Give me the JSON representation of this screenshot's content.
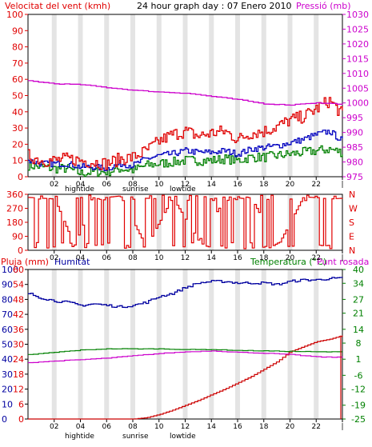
{
  "header": {
    "wind_title": "Velocitat del vent (kmh)",
    "date_title": "24 hour graph day : 07 Enero 2010",
    "pressure_title": "Pressió (mb)"
  },
  "footer_labels": {
    "hightide": "hightide",
    "sunrise": "sunrise",
    "lowtide": "lowtide"
  },
  "panel3_labels": {
    "rain": "Pluja (mm)",
    "humidity": "Humitat",
    "temperature": "Temperatura (°C)",
    "dewpoint": "Punt rosada"
  },
  "colors": {
    "wind_gust": "#e00000",
    "wind_avg": "#0000c0",
    "wind_low": "#008000",
    "pressure": "#cc00cc",
    "direction": "#e00000",
    "humidity": "#0000a0",
    "rain": "#cc0000",
    "temperature": "#008000",
    "dewpoint": "#cc00cc",
    "grid_band": "#e4e4e4"
  },
  "chart_data": [
    {
      "type": "line",
      "x_ticks": [
        "02",
        "04",
        "06",
        "08",
        "10",
        "12",
        "14",
        "16",
        "18",
        "20",
        "22",
        "|"
      ],
      "x_range": [
        0,
        24
      ],
      "left_axis": {
        "ticks": [
          0,
          10,
          20,
          30,
          40,
          50,
          60,
          70,
          80,
          90,
          100
        ],
        "range": [
          0,
          100
        ]
      },
      "right_axis": {
        "ticks": [
          975,
          980,
          985,
          990,
          995,
          1000,
          1005,
          1010,
          1015,
          1020,
          1025,
          1030
        ],
        "range": [
          975,
          1030
        ]
      },
      "series": [
        {
          "x": [
            0,
            1,
            2,
            3,
            4,
            5,
            6,
            7,
            8,
            9,
            10,
            11,
            12,
            13,
            14,
            15,
            16,
            17,
            18,
            19,
            20,
            21,
            22,
            23,
            24
          ],
          "values": [
            13,
            10,
            10,
            11,
            10,
            9,
            8,
            11,
            12,
            16,
            22,
            26,
            28,
            25,
            27,
            28,
            23,
            27,
            28,
            31,
            35,
            37,
            42,
            47,
            38
          ]
        },
        {
          "x": [
            0,
            1,
            2,
            3,
            4,
            5,
            6,
            7,
            8,
            9,
            10,
            11,
            12,
            13,
            14,
            15,
            16,
            17,
            18,
            19,
            20,
            21,
            22,
            23,
            24
          ],
          "values": [
            10,
            8,
            8,
            8,
            6,
            6,
            5,
            8,
            7,
            11,
            13,
            14,
            16,
            15,
            15,
            16,
            14,
            17,
            18,
            19,
            21,
            23,
            26,
            28,
            22
          ]
        },
        {
          "x": [
            0,
            1,
            2,
            3,
            4,
            5,
            6,
            7,
            8,
            9,
            10,
            11,
            12,
            13,
            14,
            15,
            16,
            17,
            18,
            19,
            20,
            21,
            22,
            23,
            24
          ],
          "values": [
            7,
            6,
            5,
            5,
            2,
            3,
            3,
            5,
            4,
            7,
            8,
            9,
            10,
            10,
            10,
            11,
            10,
            12,
            12,
            13,
            14,
            15,
            16,
            17,
            15
          ]
        },
        {
          "x": [
            0,
            2,
            4,
            6,
            8,
            10,
            12,
            14,
            16,
            18,
            19,
            20,
            21,
            22,
            23,
            24
          ],
          "values": [
            1007.5,
            1006.5,
            1006.2,
            1005.2,
            1004.3,
            1003.7,
            1003.3,
            1002.2,
            1001.1,
            999.7,
            999.5,
            999.3,
            999.8,
            1000,
            999.8,
            999.6
          ]
        }
      ]
    },
    {
      "type": "line",
      "x_ticks": [
        "02",
        "04",
        "06",
        "08",
        "10",
        "12",
        "14",
        "16",
        "18",
        "20",
        "22",
        "|"
      ],
      "left_axis": {
        "ticks": [
          0,
          90,
          180,
          270,
          360
        ],
        "range": [
          0,
          360
        ]
      },
      "right_labels": [
        "N",
        "W",
        "S",
        "E",
        "N"
      ],
      "series": [
        {
          "x": [
            0,
            2,
            3.5,
            5,
            7,
            9,
            11,
            13,
            15,
            17,
            19,
            21,
            23,
            24
          ],
          "values": [
            340,
            330,
            30,
            330,
            350,
            20,
            340,
            60,
            330,
            340,
            20,
            345,
            330,
            335
          ]
        }
      ]
    },
    {
      "type": "line",
      "x_ticks": [
        "02",
        "04",
        "06",
        "08",
        "10",
        "12",
        "14",
        "16",
        "18",
        "20",
        "22",
        "|"
      ],
      "left_axis": {
        "ticks": [
          0,
          6,
          12,
          18,
          24,
          30,
          36,
          42,
          48,
          54,
          60
        ],
        "range": [
          0,
          60
        ]
      },
      "humidity_axis": {
        "ticks": [
          0,
          10,
          20,
          30,
          40,
          50,
          60,
          70,
          80,
          90,
          100
        ],
        "range": [
          0,
          100
        ]
      },
      "right_axis": {
        "ticks": [
          -25,
          -19,
          -12,
          -6,
          1,
          8,
          14,
          21,
          27,
          34,
          40
        ],
        "range": [
          -25,
          40
        ]
      },
      "series": [
        {
          "x": [
            0,
            8,
            9,
            10,
            11,
            12,
            13,
            14,
            15,
            16,
            17,
            18,
            19,
            20,
            21,
            22,
            23,
            24
          ],
          "values": [
            0,
            0,
            0.5,
            1.8,
            3.5,
            5.5,
            7.5,
            9.8,
            12,
            14.5,
            17,
            20,
            23,
            27,
            29,
            31,
            32,
            33.5
          ]
        },
        {
          "x": [
            0,
            1,
            2,
            3,
            4,
            5,
            6,
            7,
            8,
            9,
            10,
            11,
            12,
            13,
            14,
            15,
            16,
            17,
            18,
            19,
            20,
            21,
            22,
            23,
            24
          ],
          "values": [
            84,
            81,
            79,
            78,
            76,
            77,
            76,
            75,
            76,
            78,
            82,
            84,
            88,
            91,
            92,
            92,
            91,
            91,
            91,
            90,
            92,
            93,
            93,
            94,
            94
          ]
        },
        {
          "x": [
            0,
            2,
            4,
            6,
            8,
            10,
            12,
            14,
            16,
            18,
            20,
            22,
            24
          ],
          "values": [
            3,
            4,
            5,
            5.5,
            5.5,
            5.5,
            5.2,
            5.2,
            4.8,
            4.6,
            4.4,
            4.2,
            4.2
          ]
        },
        {
          "x": [
            0,
            2,
            4,
            6,
            8,
            10,
            12,
            14,
            16,
            18,
            20,
            22,
            24
          ],
          "values": [
            -0.5,
            0.2,
            0.8,
            1.5,
            2.5,
            3.5,
            4.2,
            4.6,
            4.0,
            3.6,
            3.0,
            2.0,
            1.8
          ]
        }
      ]
    }
  ]
}
